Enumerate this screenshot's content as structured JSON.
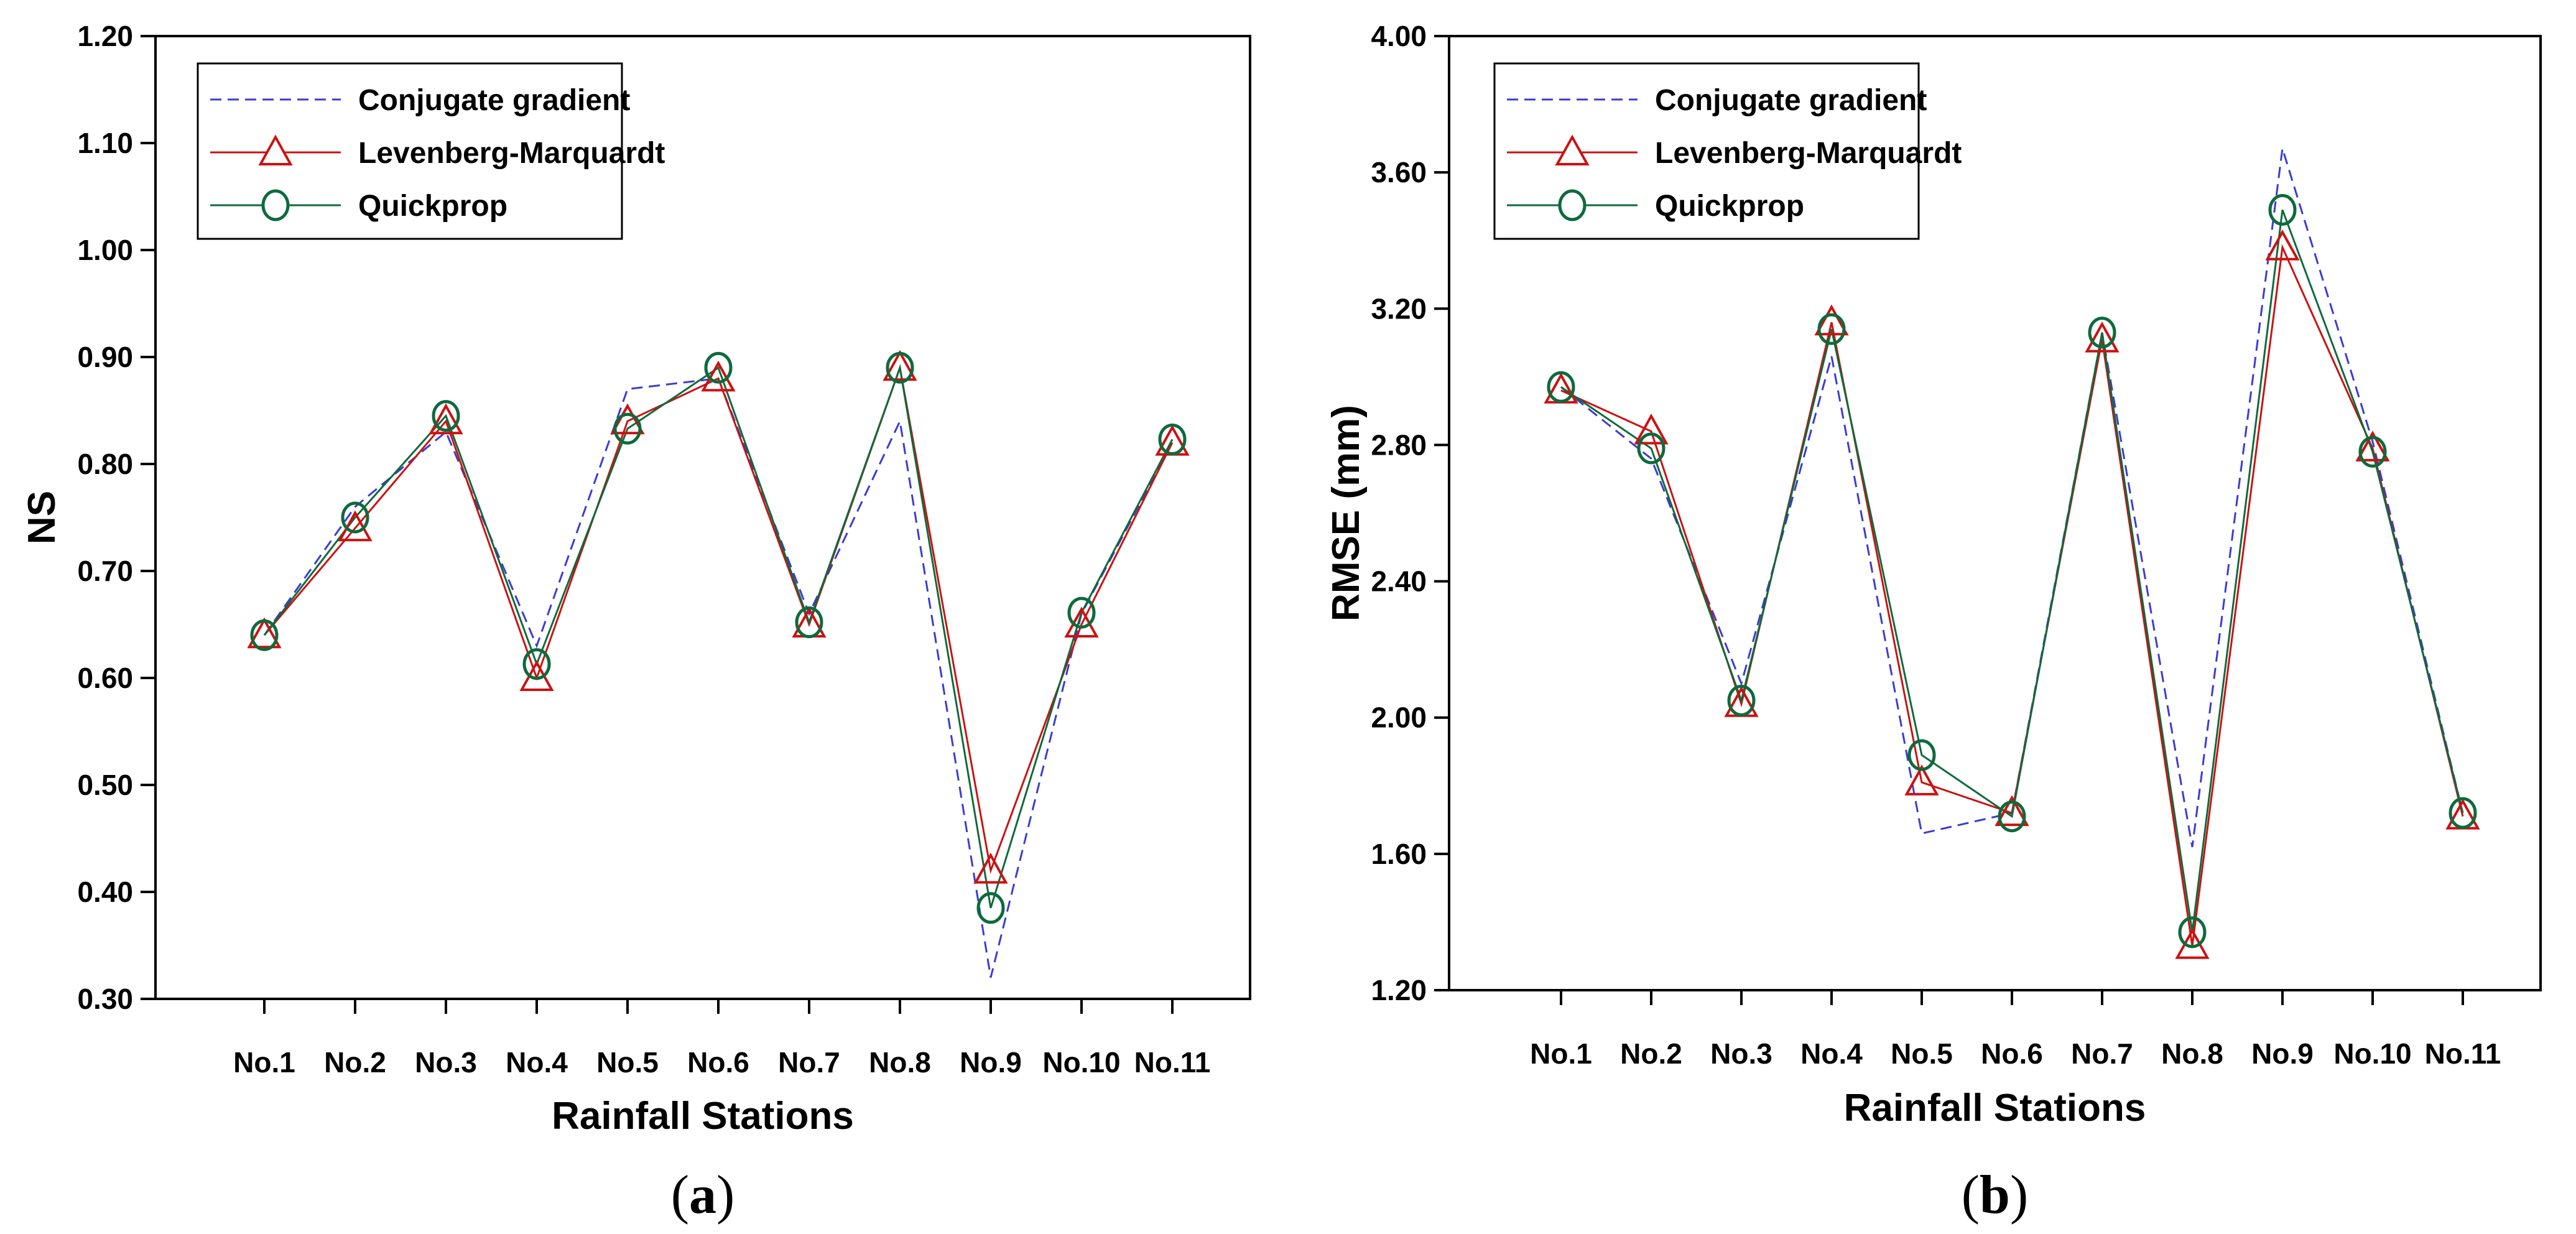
{
  "chart_data": [
    {
      "type": "line",
      "panel_label": "(a)",
      "panel_letter": "a",
      "xlabel": "Rainfall Stations",
      "ylabel": "NS",
      "categories": [
        "No.1",
        "No.2",
        "No.3",
        "No.4",
        "No.5",
        "No.6",
        "No.7",
        "No.8",
        "No.9",
        "No.10",
        "No.11"
      ],
      "ylim": [
        0.3,
        1.2
      ],
      "yticks": [
        0.3,
        0.4,
        0.5,
        0.6,
        0.7,
        0.8,
        0.9,
        1.0,
        1.1,
        1.2
      ],
      "ytick_labels": [
        "0.30",
        "0.40",
        "0.50",
        "0.60",
        "0.70",
        "0.80",
        "0.90",
        "1.00",
        "1.10",
        "1.20"
      ],
      "legend_position": "top-left",
      "series": [
        {
          "name": "Conjugate gradient",
          "color": "#3b3bd6",
          "line": "dashed",
          "marker": "none",
          "values": [
            0.64,
            0.76,
            0.83,
            0.63,
            0.87,
            0.88,
            0.66,
            0.84,
            0.32,
            0.66,
            0.82
          ]
        },
        {
          "name": "Levenberg-Marquardt",
          "color": "#cc1111",
          "line": "solid",
          "marker": "triangle",
          "values": [
            0.64,
            0.74,
            0.84,
            0.6,
            0.84,
            0.88,
            0.65,
            0.89,
            0.42,
            0.65,
            0.82
          ]
        },
        {
          "name": "Quickprop",
          "color": "#0e6a3c",
          "line": "solid",
          "marker": "circle",
          "values": [
            0.64,
            0.75,
            0.845,
            0.613,
            0.833,
            0.89,
            0.652,
            0.89,
            0.385,
            0.661,
            0.823
          ]
        }
      ]
    },
    {
      "type": "line",
      "panel_label": "(b)",
      "panel_letter": "b",
      "xlabel": "Rainfall Stations",
      "ylabel": "RMSE (mm)",
      "categories": [
        "No.1",
        "No.2",
        "No.3",
        "No.4",
        "No.5",
        "No.6",
        "No.7",
        "No.8",
        "No.9",
        "No.10",
        "No.11"
      ],
      "ylim": [
        1.2,
        4.0
      ],
      "yticks": [
        1.2,
        1.6,
        2.0,
        2.4,
        2.8,
        3.2,
        3.6,
        4.0
      ],
      "ytick_labels": [
        "1.20",
        "1.60",
        "2.00",
        "2.40",
        "2.80",
        "3.20",
        "3.60",
        "4.00"
      ],
      "legend_position": "top-left",
      "series": [
        {
          "name": "Conjugate gradient",
          "color": "#3b3bd6",
          "line": "dashed",
          "marker": "none",
          "values": [
            2.97,
            2.76,
            2.1,
            3.06,
            1.66,
            1.72,
            3.13,
            1.62,
            3.67,
            2.81,
            1.72
          ]
        },
        {
          "name": "Levenberg-Marquardt",
          "color": "#cc1111",
          "line": "solid",
          "marker": "triangle",
          "values": [
            2.96,
            2.84,
            2.04,
            3.16,
            1.81,
            1.72,
            3.11,
            1.33,
            3.38,
            2.79,
            1.71
          ]
        },
        {
          "name": "Quickprop",
          "color": "#0e6a3c",
          "line": "solid",
          "marker": "circle",
          "values": [
            2.97,
            2.79,
            2.05,
            3.14,
            1.89,
            1.71,
            3.13,
            1.37,
            3.49,
            2.78,
            1.72
          ]
        }
      ]
    }
  ]
}
